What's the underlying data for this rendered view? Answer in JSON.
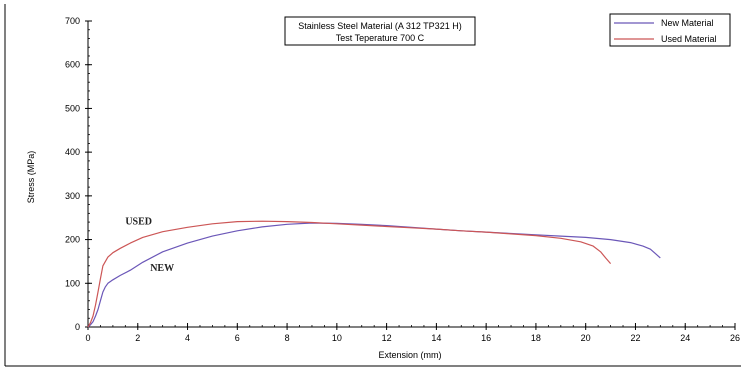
{
  "chart_data": {
    "type": "line",
    "title": [
      "Stainless Steel Material (A 312 TP321 H)",
      "Test Teperature  700 C"
    ],
    "xlabel": "Extension (mm)",
    "ylabel": "Stress (MPa)",
    "xlim": [
      0,
      26
    ],
    "ylim": [
      0,
      700
    ],
    "x_ticks": [
      0,
      2,
      4,
      6,
      8,
      10,
      12,
      14,
      16,
      18,
      20,
      22,
      24,
      26
    ],
    "y_ticks": [
      0,
      100,
      200,
      300,
      400,
      500,
      600,
      700
    ],
    "grid": false,
    "legend_position": "top-right",
    "series": [
      {
        "name": "New Material",
        "color": "#6b57b8",
        "x": [
          0,
          0.1,
          0.2,
          0.3,
          0.4,
          0.5,
          0.6,
          0.7,
          0.8,
          1.0,
          1.3,
          1.7,
          2.2,
          3.0,
          4.0,
          5.0,
          6.0,
          7.0,
          8.0,
          9.0,
          10.0,
          11.0,
          12.0,
          13.0,
          14.0,
          15.0,
          16.0,
          17.0,
          18.0,
          19.0,
          20.0,
          21.0,
          21.8,
          22.3,
          22.6,
          22.8,
          23.0
        ],
        "y": [
          0,
          5,
          12,
          25,
          40,
          60,
          80,
          92,
          100,
          108,
          118,
          130,
          148,
          172,
          192,
          208,
          220,
          229,
          235,
          238,
          237,
          235,
          232,
          228,
          224,
          220,
          217,
          214,
          211,
          208,
          205,
          200,
          193,
          185,
          178,
          168,
          158
        ]
      },
      {
        "name": "Used Material",
        "color": "#cc5656",
        "x": [
          0,
          0.1,
          0.2,
          0.3,
          0.4,
          0.5,
          0.6,
          0.8,
          1.0,
          1.3,
          1.7,
          2.2,
          3.0,
          4.0,
          5.0,
          6.0,
          7.0,
          8.0,
          9.0,
          10.0,
          11.0,
          12.0,
          13.0,
          14.0,
          15.0,
          16.0,
          17.0,
          18.0,
          19.0,
          19.8,
          20.3,
          20.6,
          20.8,
          21.0
        ],
        "y": [
          0,
          10,
          25,
          50,
          80,
          110,
          140,
          160,
          170,
          180,
          192,
          205,
          218,
          228,
          236,
          241,
          242,
          241,
          239,
          236,
          233,
          230,
          227,
          224,
          220,
          217,
          213,
          209,
          203,
          195,
          185,
          172,
          158,
          145
        ]
      }
    ],
    "annotations": [
      {
        "text": "USED",
        "x": 1.5,
        "y": 235
      },
      {
        "text": "NEW",
        "x": 2.5,
        "y": 128
      }
    ]
  }
}
